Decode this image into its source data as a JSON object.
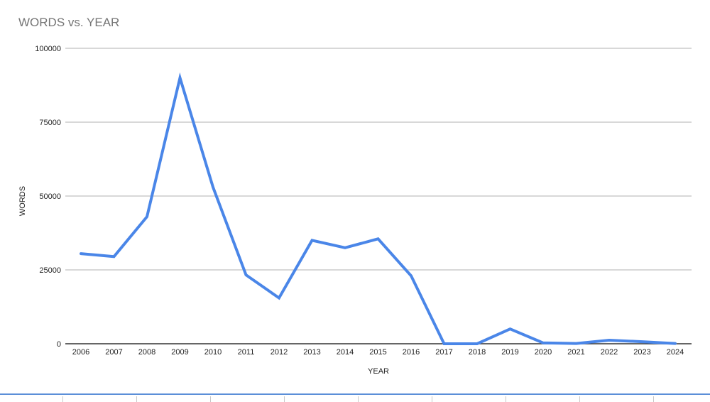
{
  "chart_data": {
    "type": "line",
    "title": "WORDS vs. YEAR",
    "xlabel": "YEAR",
    "ylabel": "WORDS",
    "ylim": [
      0,
      100000
    ],
    "yticks": [
      "0",
      "25000",
      "50000",
      "75000",
      "100000"
    ],
    "grid": true,
    "categories": [
      "2006",
      "2007",
      "2008",
      "2009",
      "2010",
      "2011",
      "2012",
      "2013",
      "2014",
      "2015",
      "2016",
      "2017",
      "2018",
      "2019",
      "2020",
      "2021",
      "2022",
      "2023",
      "2024"
    ],
    "series": [
      {
        "values": [
          30500,
          29500,
          43000,
          90000,
          53000,
          23300,
          15500,
          35000,
          32500,
          35500,
          23000,
          0,
          0,
          5000,
          300,
          100,
          1200,
          700,
          100
        ],
        "color": "#4a86e8"
      }
    ]
  }
}
